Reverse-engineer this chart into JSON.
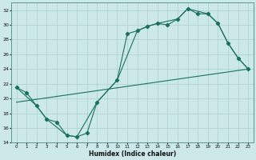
{
  "xlabel": "Humidex (Indice chaleur)",
  "bg_color": "#cce8e8",
  "grid_color": "#aacfcf",
  "line_color": "#1a7060",
  "xmin": -0.5,
  "xmax": 23.5,
  "ymin": 14,
  "ymax": 33,
  "yticks": [
    14,
    16,
    18,
    20,
    22,
    24,
    26,
    28,
    30,
    32
  ],
  "xticks": [
    0,
    1,
    2,
    3,
    4,
    5,
    6,
    7,
    8,
    9,
    10,
    11,
    12,
    13,
    14,
    15,
    16,
    17,
    18,
    19,
    20,
    21,
    22,
    23
  ],
  "main_x": [
    0,
    1,
    2,
    3,
    4,
    5,
    6,
    7,
    8,
    10,
    11,
    12,
    13,
    14,
    15,
    16,
    17,
    18,
    19,
    20,
    21,
    22,
    23
  ],
  "main_y": [
    21.5,
    20.8,
    19.0,
    17.2,
    16.8,
    15.0,
    14.8,
    15.3,
    19.5,
    22.5,
    28.8,
    29.2,
    29.8,
    30.2,
    30.0,
    30.8,
    32.2,
    31.5,
    31.5,
    30.2,
    27.5,
    25.5,
    24.0
  ],
  "envelope_x": [
    0,
    2,
    3,
    5,
    6,
    8,
    10,
    12,
    13,
    14,
    16,
    17,
    19,
    20,
    21,
    22,
    23
  ],
  "envelope_y": [
    21.5,
    19.0,
    17.2,
    15.0,
    14.8,
    19.5,
    22.5,
    29.2,
    29.8,
    30.2,
    30.8,
    32.2,
    31.5,
    30.2,
    27.5,
    25.5,
    24.0
  ],
  "trend_x": [
    0,
    23
  ],
  "trend_y": [
    19.5,
    24.0
  ]
}
